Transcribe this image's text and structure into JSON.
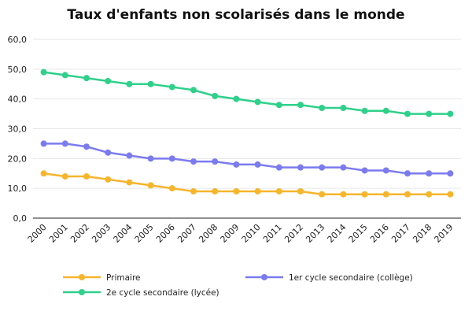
{
  "chart_data": {
    "type": "line",
    "title": "Taux d'enfants non scolarisés dans le monde",
    "xlabel": "",
    "ylabel": "",
    "categories": [
      "2000",
      "2001",
      "2002",
      "2003",
      "2004",
      "2005",
      "2006",
      "2007",
      "2008",
      "2009",
      "2010",
      "2011",
      "2012",
      "2013",
      "2014",
      "2015",
      "2016",
      "2017",
      "2018",
      "2019"
    ],
    "ylim": [
      0,
      60
    ],
    "yticks": [
      "0,0",
      "10,0",
      "20,0",
      "30,0",
      "40,0",
      "50,0",
      "60,0"
    ],
    "grid": true,
    "legend_position": "bottom",
    "series": [
      {
        "name": "Primaire",
        "color": "#f7b52c",
        "values": [
          15,
          14,
          14,
          13,
          12,
          11,
          10,
          9,
          9,
          9,
          9,
          9,
          9,
          8,
          8,
          8,
          8,
          8,
          8,
          8
        ]
      },
      {
        "name": "1er cycle secondaire (collège)",
        "color": "#7b7bef",
        "values": [
          25,
          25,
          24,
          22,
          21,
          20,
          20,
          19,
          19,
          18,
          18,
          17,
          17,
          17,
          17,
          16,
          16,
          15,
          15,
          15
        ]
      },
      {
        "name": "2e cycle secondaire (lycée)",
        "color": "#2fd08a",
        "values": [
          49,
          48,
          47,
          46,
          45,
          45,
          44,
          43,
          41,
          40,
          39,
          38,
          38,
          37,
          37,
          36,
          36,
          35,
          35,
          35
        ]
      }
    ]
  }
}
